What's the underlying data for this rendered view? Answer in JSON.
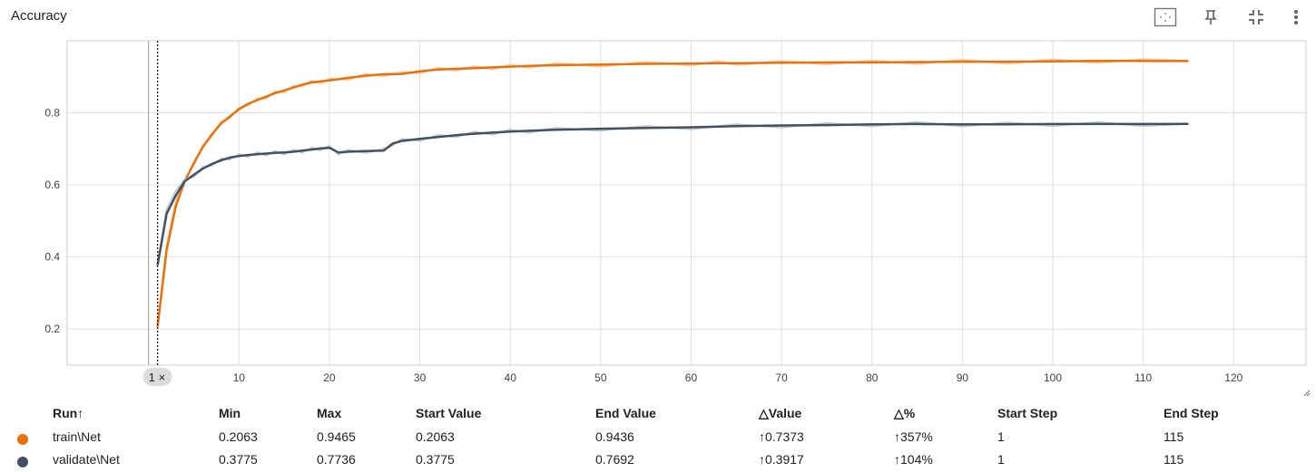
{
  "title": "Accuracy",
  "toolbar": {
    "icons": [
      "fit-domain-icon",
      "pin-icon",
      "collapse-icon",
      "more-vert-icon"
    ]
  },
  "colors": {
    "train": "#e8710a",
    "train_light": "#f7cba5",
    "validate": "#425066",
    "validate_light": "#c3c8cf"
  },
  "step_marker": {
    "label": "1",
    "close": "×"
  },
  "chart_data": {
    "type": "line",
    "title": "Accuracy",
    "xlabel": "",
    "ylabel": "",
    "xlim": [
      -9,
      128
    ],
    "ylim": [
      0.1,
      1.0
    ],
    "xticks": [
      "10",
      "20",
      "30",
      "40",
      "50",
      "60",
      "70",
      "80",
      "90",
      "100",
      "110",
      "120"
    ],
    "yticks": [
      "0.2",
      "0.4",
      "0.6",
      "0.8"
    ],
    "grid": true,
    "series": [
      {
        "name": "train\\Net",
        "x": [
          1,
          2,
          3,
          4,
          5,
          6,
          7,
          8,
          9,
          10,
          11,
          12,
          13,
          14,
          15,
          16,
          17,
          18,
          19,
          20,
          22,
          24,
          26,
          28,
          30,
          32,
          34,
          36,
          38,
          40,
          42,
          45,
          50,
          55,
          60,
          63,
          65,
          70,
          75,
          80,
          85,
          90,
          95,
          100,
          105,
          110,
          115
        ],
        "values": [
          0.2063,
          0.42,
          0.54,
          0.61,
          0.66,
          0.705,
          0.74,
          0.77,
          0.79,
          0.81,
          0.825,
          0.835,
          0.845,
          0.855,
          0.862,
          0.87,
          0.878,
          0.884,
          0.887,
          0.89,
          0.897,
          0.903,
          0.907,
          0.908,
          0.915,
          0.92,
          0.922,
          0.924,
          0.926,
          0.928,
          0.93,
          0.932,
          0.934,
          0.936,
          0.937,
          0.938,
          0.938,
          0.939,
          0.94,
          0.94,
          0.941,
          0.942,
          0.942,
          0.943,
          0.944,
          0.944,
          0.9436
        ]
      },
      {
        "name": "validate\\Net",
        "x": [
          1,
          2,
          3,
          4,
          5,
          6,
          7,
          8,
          9,
          10,
          11,
          12,
          13,
          14,
          15,
          16,
          17,
          18,
          19,
          20,
          21,
          22,
          24,
          26,
          27,
          28,
          30,
          32,
          34,
          36,
          38,
          40,
          42,
          45,
          50,
          55,
          60,
          65,
          70,
          75,
          80,
          85,
          90,
          95,
          100,
          105,
          110,
          115
        ],
        "values": [
          0.3775,
          0.52,
          0.57,
          0.61,
          0.628,
          0.645,
          0.658,
          0.668,
          0.676,
          0.68,
          0.683,
          0.685,
          0.687,
          0.689,
          0.69,
          0.692,
          0.695,
          0.698,
          0.701,
          0.703,
          0.69,
          0.692,
          0.694,
          0.695,
          0.715,
          0.722,
          0.728,
          0.733,
          0.738,
          0.742,
          0.745,
          0.748,
          0.75,
          0.753,
          0.756,
          0.758,
          0.76,
          0.763,
          0.765,
          0.766,
          0.768,
          0.769,
          0.768,
          0.768,
          0.769,
          0.769,
          0.769,
          0.7692
        ]
      }
    ]
  },
  "table": {
    "headers": [
      "Run↑",
      "Min",
      "Max",
      "Start Value",
      "End Value",
      "△Value",
      "△%",
      "Start Step",
      "End Step"
    ],
    "rows": [
      [
        "train\\Net",
        "0.2063",
        "0.9465",
        "0.2063",
        "0.9436",
        "↑0.7373",
        "↑357%",
        "1",
        "115"
      ],
      [
        "validate\\Net",
        "0.3775",
        "0.7736",
        "0.3775",
        "0.7692",
        "↑0.3917",
        "↑104%",
        "1",
        "115"
      ]
    ]
  }
}
